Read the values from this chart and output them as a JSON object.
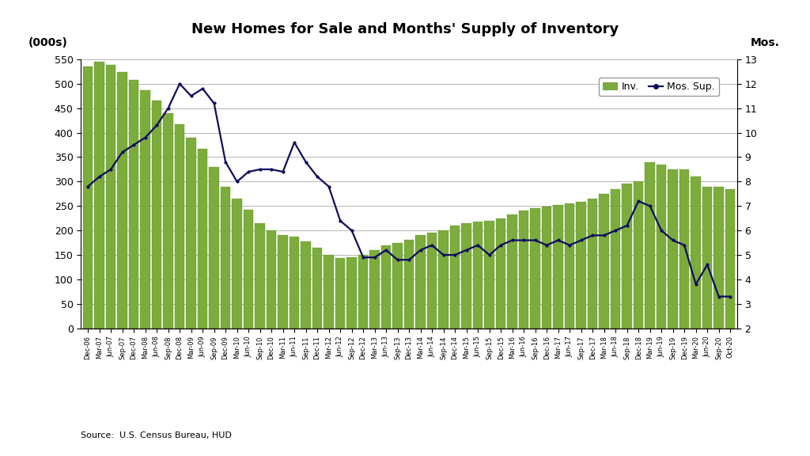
{
  "title": "New Homes for Sale and Months' Supply of Inventory",
  "left_unit_label": "(000s)",
  "right_unit_label": "Mos.",
  "source": "Source:  U.S. Census Bureau, HUD",
  "bar_color": "#7cac3c",
  "bar_edge_color": "#5a8a20",
  "line_color": "#0d0d60",
  "background_color": "#ffffff",
  "ylim_left": [
    0,
    550
  ],
  "ylim_right": [
    2.0,
    13.0
  ],
  "yticks_left": [
    0,
    50,
    100,
    150,
    200,
    250,
    300,
    350,
    400,
    450,
    500,
    550
  ],
  "yticks_right": [
    2.0,
    3.0,
    4.0,
    5.0,
    6.0,
    7.0,
    8.0,
    9.0,
    10.0,
    11.0,
    12.0,
    13.0
  ],
  "labels": [
    "Dec-06",
    "Mar-07",
    "Jun-07",
    "Sep-07",
    "Dec-07",
    "Mar-08",
    "Jun-08",
    "Sep-08",
    "Dec-08",
    "Mar-09",
    "Jun-09",
    "Sep-09",
    "Dec-09",
    "Mar-10",
    "Jun-10",
    "Sep-10",
    "Dec-10",
    "Mar-11",
    "Jun-11",
    "Sep-11",
    "Dec-11",
    "Mar-12",
    "Jun-12",
    "Sep-12",
    "Dec-12",
    "Mar-13",
    "Jun-13",
    "Sep-13",
    "Dec-13",
    "Mar-14",
    "Jun-14",
    "Sep-14",
    "Dec-14",
    "Mar-15",
    "Jun-15",
    "Sep-15",
    "Dec-15",
    "Mar-16",
    "Jun-16",
    "Sep-16",
    "Dec-16",
    "Mar-17",
    "Jun-17",
    "Sep-17",
    "Dec-17",
    "Mar-18",
    "Jun-18",
    "Sep-18",
    "Dec-18",
    "Mar-19",
    "Jun-19",
    "Sep-19",
    "Dec-19",
    "Mar-20",
    "Jun-20",
    "Sep-20",
    "Oct-20"
  ],
  "inventory": [
    536,
    545,
    538,
    524,
    507,
    487,
    465,
    440,
    417,
    390,
    367,
    330,
    290,
    265,
    243,
    215,
    200,
    190,
    188,
    178,
    165,
    150,
    143,
    145,
    150,
    160,
    170,
    175,
    180,
    190,
    195,
    200,
    210,
    215,
    218,
    220,
    225,
    232,
    240,
    245,
    248,
    252,
    255,
    258,
    265,
    275,
    285,
    295,
    300,
    340,
    335,
    325,
    325,
    310,
    290,
    290,
    285
  ],
  "months_supply": [
    7.8,
    8.2,
    8.5,
    9.2,
    9.5,
    9.8,
    10.3,
    11.0,
    12.0,
    11.5,
    11.8,
    11.2,
    8.8,
    8.0,
    8.4,
    8.5,
    8.5,
    8.4,
    9.6,
    8.8,
    8.2,
    7.8,
    6.4,
    6.0,
    4.9,
    4.9,
    5.2,
    4.8,
    4.8,
    5.2,
    5.4,
    5.0,
    5.0,
    5.2,
    5.4,
    5.0,
    5.4,
    5.6,
    5.6,
    5.6,
    5.4,
    5.6,
    5.4,
    5.6,
    5.8,
    5.8,
    6.0,
    6.2,
    7.2,
    7.0,
    6.0,
    5.6,
    5.4,
    3.8,
    4.6,
    3.3,
    3.3
  ]
}
